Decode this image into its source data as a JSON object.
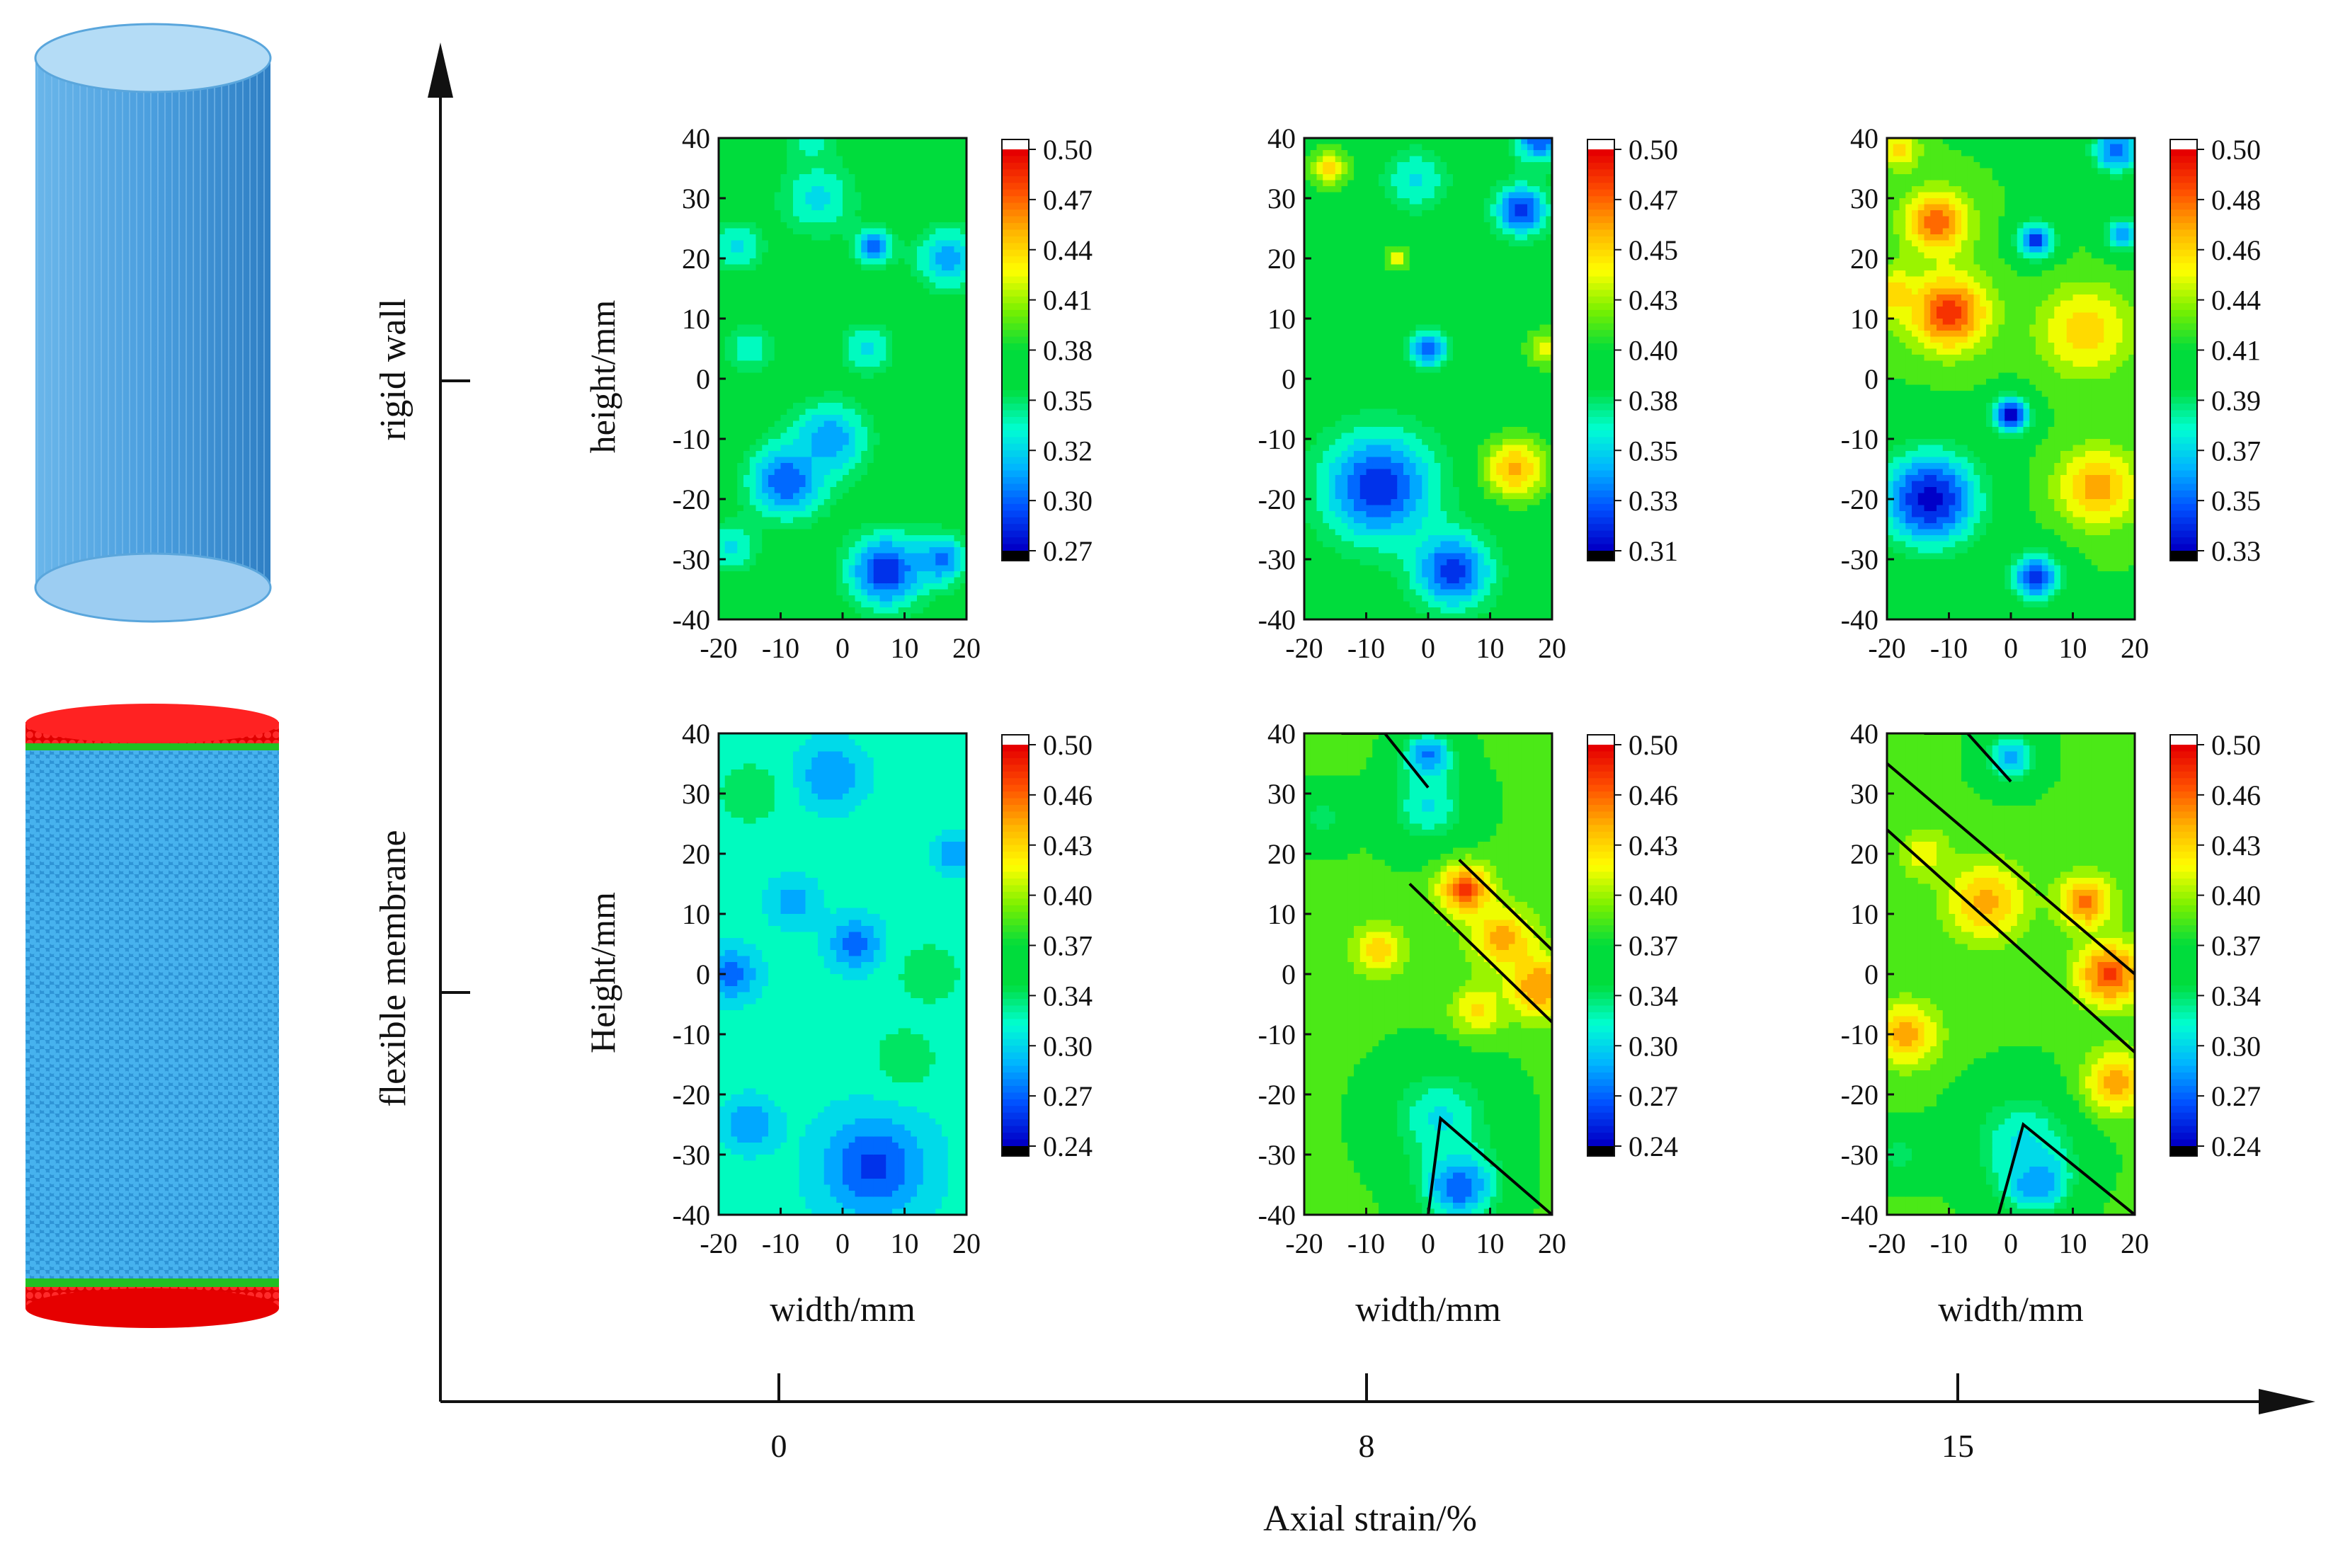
{
  "colors": {
    "scale": [
      "#0000c8",
      "#0050ff",
      "#00b4ff",
      "#00ffd2",
      "#00dc3c",
      "#00dc3c",
      "#78f000",
      "#ffff00",
      "#ffb400",
      "#ff5000",
      "#e60000"
    ],
    "cylinder_top": "#a8d4f4",
    "cylinder_body": "#4aa0e0",
    "cylinder_end_red": "#ff1a1a",
    "cylinder_end_green": "#22c022",
    "cylinder_particles": "#3aa6e6"
  },
  "chart_data": {
    "type": "heatmap",
    "xlabel": "Axial strain/%",
    "xticks": [
      "0",
      "8",
      "15"
    ],
    "row_labels": [
      "rigid wall",
      "flexible membrane"
    ],
    "ylabels": [
      "height/mm",
      "Height/mm"
    ],
    "panel_xlabel": "width/mm",
    "panel_xticks": [
      "-20",
      "-10",
      "0",
      "10",
      "20"
    ],
    "panel_yticks": [
      "40",
      "30",
      "20",
      "10",
      "0",
      "-10",
      "-20",
      "-30",
      "-40"
    ],
    "xlim": [
      -20,
      20
    ],
    "ylim": [
      -40,
      40
    ],
    "panels": [
      {
        "row": 0,
        "col": 0,
        "strain": 0,
        "colorbar_ticks": [
          "0.50",
          "0.47",
          "0.44",
          "0.41",
          "0.38",
          "0.35",
          "0.32",
          "0.30",
          "0.27"
        ],
        "vmin": 0.27,
        "vmax": 0.5,
        "base": 0.38,
        "blobs": [
          {
            "x": 7,
            "y": -32,
            "r": 6,
            "v": 0.28
          },
          {
            "x": -9,
            "y": -17,
            "r": 6,
            "v": 0.29
          },
          {
            "x": -2,
            "y": -10,
            "r": 6,
            "v": 0.31
          },
          {
            "x": 16,
            "y": -30,
            "r": 4,
            "v": 0.3
          },
          {
            "x": 17,
            "y": 20,
            "r": 5,
            "v": 0.31
          },
          {
            "x": 5,
            "y": 22,
            "r": 3,
            "v": 0.3
          },
          {
            "x": -4,
            "y": 30,
            "r": 6,
            "v": 0.33
          },
          {
            "x": -17,
            "y": 22,
            "r": 4,
            "v": 0.33
          },
          {
            "x": -15,
            "y": 5,
            "r": 4,
            "v": 0.34
          },
          {
            "x": 4,
            "y": 5,
            "r": 4,
            "v": 0.33
          },
          {
            "x": -18,
            "y": -28,
            "r": 4,
            "v": 0.33
          },
          {
            "x": -5,
            "y": 40,
            "r": 4,
            "v": 0.34
          }
        ],
        "lines": []
      },
      {
        "row": 0,
        "col": 1,
        "strain": 8,
        "colorbar_ticks": [
          "0.50",
          "0.47",
          "0.45",
          "0.43",
          "0.40",
          "0.38",
          "0.35",
          "0.33",
          "0.31"
        ],
        "vmin": 0.31,
        "vmax": 0.5,
        "base": 0.4,
        "blobs": [
          {
            "x": -8,
            "y": -18,
            "r": 9,
            "v": 0.32
          },
          {
            "x": 4,
            "y": -32,
            "r": 6,
            "v": 0.32
          },
          {
            "x": 15,
            "y": 28,
            "r": 4,
            "v": 0.32
          },
          {
            "x": 0,
            "y": 5,
            "r": 3,
            "v": 0.33
          },
          {
            "x": 18,
            "y": 40,
            "r": 4,
            "v": 0.33
          },
          {
            "x": -2,
            "y": 33,
            "r": 5,
            "v": 0.36
          },
          {
            "x": 14,
            "y": -15,
            "r": 5,
            "v": 0.46
          },
          {
            "x": -16,
            "y": 35,
            "r": 3,
            "v": 0.45
          },
          {
            "x": 19,
            "y": 5,
            "r": 3,
            "v": 0.44
          },
          {
            "x": -5,
            "y": 20,
            "r": 2,
            "v": 0.44
          }
        ],
        "lines": []
      },
      {
        "row": 0,
        "col": 2,
        "strain": 15,
        "colorbar_ticks": [
          "0.50",
          "0.48",
          "0.46",
          "0.44",
          "0.41",
          "0.39",
          "0.37",
          "0.35",
          "0.33"
        ],
        "vmin": 0.33,
        "vmax": 0.5,
        "base": 0.42,
        "blobs": [
          {
            "x": -12,
            "y": 26,
            "r": 5,
            "v": 0.48
          },
          {
            "x": -10,
            "y": 11,
            "r": 6,
            "v": 0.49
          },
          {
            "x": 12,
            "y": 8,
            "r": 7,
            "v": 0.46
          },
          {
            "x": 14,
            "y": -18,
            "r": 6,
            "v": 0.47
          },
          {
            "x": -19,
            "y": 14,
            "r": 4,
            "v": 0.46
          },
          {
            "x": -13,
            "y": -20,
            "r": 8,
            "v": 0.33
          },
          {
            "x": 4,
            "y": -33,
            "r": 4,
            "v": 0.34
          },
          {
            "x": 0,
            "y": -6,
            "r": 3,
            "v": 0.33
          },
          {
            "x": 4,
            "y": 23,
            "r": 3,
            "v": 0.34
          },
          {
            "x": 17,
            "y": 38,
            "r": 4,
            "v": 0.35
          },
          {
            "x": 18,
            "y": 24,
            "r": 3,
            "v": 0.36
          },
          {
            "x": -18,
            "y": 38,
            "r": 3,
            "v": 0.46
          }
        ],
        "lines": []
      },
      {
        "row": 1,
        "col": 0,
        "strain": 0,
        "colorbar_ticks": [
          "0.50",
          "0.46",
          "0.43",
          "0.40",
          "0.37",
          "0.34",
          "0.30",
          "0.27",
          "0.24"
        ],
        "vmin": 0.24,
        "vmax": 0.5,
        "base": 0.32,
        "blobs": [
          {
            "x": 5,
            "y": -32,
            "r": 8,
            "v": 0.26
          },
          {
            "x": 2,
            "y": 5,
            "r": 4,
            "v": 0.27
          },
          {
            "x": -18,
            "y": 0,
            "r": 4,
            "v": 0.27
          },
          {
            "x": -2,
            "y": 33,
            "r": 5,
            "v": 0.28
          },
          {
            "x": -15,
            "y": -25,
            "r": 4,
            "v": 0.28
          },
          {
            "x": 18,
            "y": 20,
            "r": 3,
            "v": 0.28
          },
          {
            "x": -8,
            "y": 12,
            "r": 4,
            "v": 0.29
          },
          {
            "x": -15,
            "y": 30,
            "r": 5,
            "v": 0.34
          },
          {
            "x": 14,
            "y": 0,
            "r": 5,
            "v": 0.34
          },
          {
            "x": 10,
            "y": -14,
            "r": 5,
            "v": 0.34
          }
        ],
        "lines": []
      },
      {
        "row": 1,
        "col": 1,
        "strain": 8,
        "colorbar_ticks": [
          "0.50",
          "0.46",
          "0.43",
          "0.40",
          "0.37",
          "0.34",
          "0.30",
          "0.27",
          "0.24"
        ],
        "vmin": 0.24,
        "vmax": 0.5,
        "base": 0.38,
        "blobs": [
          {
            "x": 5,
            "y": -35,
            "r": 6,
            "v": 0.26
          },
          {
            "x": 0,
            "y": 36,
            "r": 4,
            "v": 0.27
          },
          {
            "x": 0,
            "y": 28,
            "r": 6,
            "v": 0.31
          },
          {
            "x": 2,
            "y": -24,
            "r": 8,
            "v": 0.31
          },
          {
            "x": -17,
            "y": 26,
            "r": 4,
            "v": 0.34
          },
          {
            "x": 6,
            "y": 14,
            "r": 4,
            "v": 0.48
          },
          {
            "x": 12,
            "y": 6,
            "r": 5,
            "v": 0.45
          },
          {
            "x": 18,
            "y": -2,
            "r": 5,
            "v": 0.46
          },
          {
            "x": -8,
            "y": 4,
            "r": 4,
            "v": 0.44
          },
          {
            "x": 8,
            "y": -6,
            "r": 4,
            "v": 0.43
          }
        ],
        "lines": [
          [
            [
              -14,
              40
            ],
            [
              -7,
              40
            ],
            [
              0,
              31
            ]
          ],
          [
            [
              -3,
              15
            ],
            [
              20,
              -8
            ]
          ],
          [
            [
              5,
              19
            ],
            [
              20,
              4
            ]
          ],
          [
            [
              0,
              -40
            ],
            [
              2,
              -24
            ],
            [
              20,
              -40
            ]
          ]
        ]
      },
      {
        "row": 1,
        "col": 2,
        "strain": 15,
        "colorbar_ticks": [
          "0.50",
          "0.46",
          "0.43",
          "0.40",
          "0.37",
          "0.34",
          "0.30",
          "0.27",
          "0.24"
        ],
        "vmin": 0.24,
        "vmax": 0.5,
        "base": 0.38,
        "blobs": [
          {
            "x": 4,
            "y": -34,
            "r": 5,
            "v": 0.25
          },
          {
            "x": 0,
            "y": 36,
            "r": 4,
            "v": 0.29
          },
          {
            "x": 2,
            "y": -28,
            "r": 8,
            "v": 0.31
          },
          {
            "x": -4,
            "y": 12,
            "r": 6,
            "v": 0.45
          },
          {
            "x": 16,
            "y": 0,
            "r": 5,
            "v": 0.48
          },
          {
            "x": 12,
            "y": 12,
            "r": 4,
            "v": 0.47
          },
          {
            "x": -17,
            "y": -10,
            "r": 5,
            "v": 0.45
          },
          {
            "x": 17,
            "y": -18,
            "r": 5,
            "v": 0.45
          },
          {
            "x": -14,
            "y": 20,
            "r": 4,
            "v": 0.42
          },
          {
            "x": -18,
            "y": -30,
            "r": 4,
            "v": 0.34
          }
        ],
        "lines": [
          [
            [
              -14,
              40
            ],
            [
              -7,
              40
            ],
            [
              0,
              32
            ]
          ],
          [
            [
              -20,
              35
            ],
            [
              20,
              0
            ]
          ],
          [
            [
              -20,
              24
            ],
            [
              20,
              -13
            ]
          ],
          [
            [
              -2,
              -40
            ],
            [
              2,
              -25
            ],
            [
              20,
              -40
            ]
          ]
        ]
      }
    ]
  }
}
